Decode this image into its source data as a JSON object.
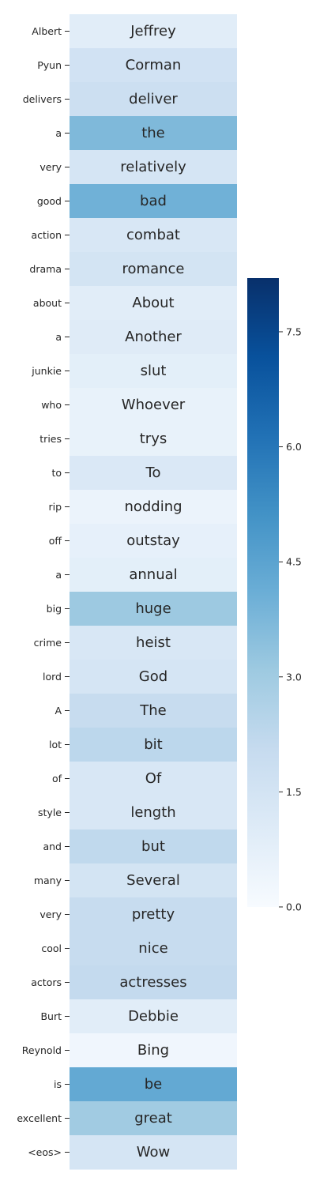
{
  "chart_data": {
    "type": "heatmap",
    "title": "",
    "xlabel": "",
    "ylabel": "",
    "colormap": "Blues",
    "row_labels": [
      "Albert",
      "Pyun",
      "delivers",
      "a",
      "very",
      "good",
      "action",
      "drama",
      "about",
      "a",
      "junkie",
      "who",
      "tries",
      "to",
      "rip",
      "off",
      "a",
      "big",
      "crime",
      "lord",
      "A",
      "lot",
      "of",
      "style",
      "and",
      "many",
      "very",
      "cool",
      "actors",
      "Burt",
      "Reynold",
      "is",
      "excellent",
      "<eos>"
    ],
    "cell_text": [
      "Jeffrey",
      "Corman",
      "deliver",
      "the",
      "relatively",
      "bad",
      "combat",
      "romance",
      "About",
      "Another",
      "slut",
      "Whoever",
      "trys",
      "To",
      "nodding",
      "outstay",
      "annual",
      "huge",
      "heist",
      "God",
      "The",
      "bit",
      "Of",
      "length",
      "but",
      "Several",
      "pretty",
      "nice",
      "actresses",
      "Debbie",
      "Bing",
      "be",
      "great",
      "Wow"
    ],
    "values": [
      0.9,
      1.6,
      1.8,
      3.7,
      1.4,
      4.0,
      1.3,
      1.5,
      0.9,
      1.0,
      0.8,
      0.6,
      0.6,
      1.2,
      0.5,
      0.7,
      0.8,
      3.1,
      1.3,
      1.4,
      2.0,
      2.3,
      1.3,
      1.3,
      2.2,
      1.5,
      2.0,
      2.0,
      2.1,
      0.9,
      0.3,
      4.3,
      3.0,
      1.4
    ],
    "colorbar": {
      "min": 0,
      "max": 8.2,
      "ticks": [
        0.0,
        1.5,
        3.0,
        4.5,
        6.0,
        7.5
      ],
      "tick_labels": [
        "0.0",
        "1.5",
        "3.0",
        "4.5",
        "6.0",
        "7.5"
      ]
    }
  }
}
